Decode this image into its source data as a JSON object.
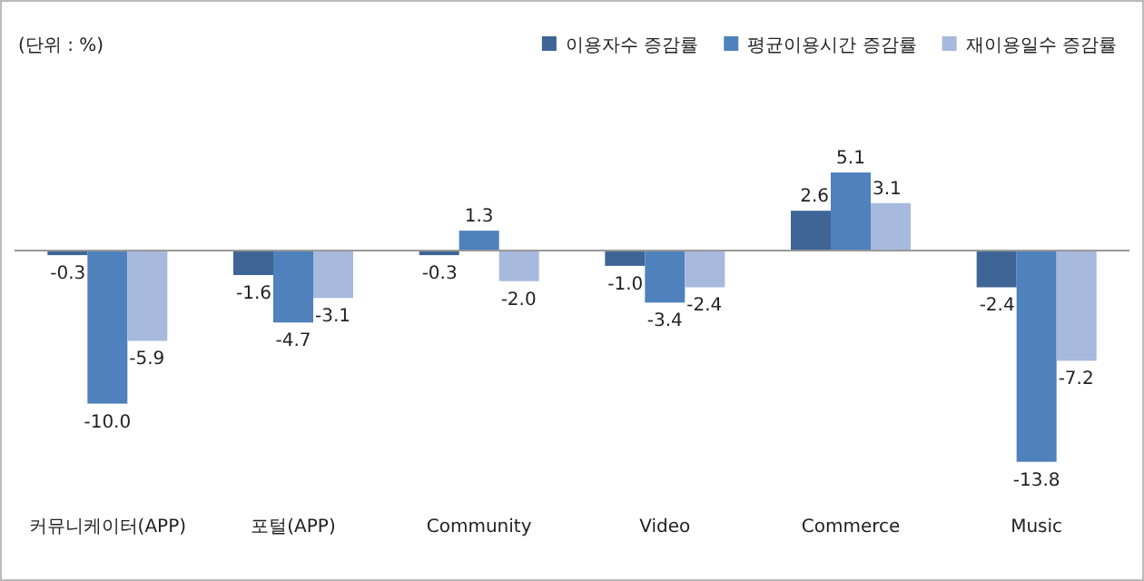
{
  "chart_data": {
    "type": "bar",
    "categories": [
      "커뮤니케이터(APP)",
      "포털(APP)",
      "Community",
      "Video",
      "Commerce",
      "Music"
    ],
    "series": [
      {
        "name": "이용자수 증감률",
        "color": "#3e6595",
        "values": [
          -0.3,
          -1.6,
          -0.3,
          -1.0,
          2.6,
          -2.4
        ],
        "value_labels": [
          "-0.3",
          "-1.6",
          "-0.3",
          "-1.0",
          "2.6",
          "-2.4"
        ]
      },
      {
        "name": "평균이용시간 증감률",
        "color": "#4f81bd",
        "values": [
          -10.0,
          -4.7,
          1.3,
          -3.4,
          5.1,
          -13.8
        ],
        "value_labels": [
          "-10.0",
          "-4.7",
          "1.3",
          "-3.4",
          "5.1",
          "-13.8"
        ]
      },
      {
        "name": "재이용일수 증감률",
        "color": "#a7b9dd",
        "values": [
          -5.9,
          -3.1,
          -2.0,
          -2.4,
          3.1,
          -7.2
        ],
        "value_labels": [
          "-5.9",
          "-3.1",
          "-2.0",
          "-2.4",
          "3.1",
          "-7.2"
        ]
      }
    ],
    "legend": "top right",
    "annotations": [
      "(단위 : %)"
    ]
  }
}
